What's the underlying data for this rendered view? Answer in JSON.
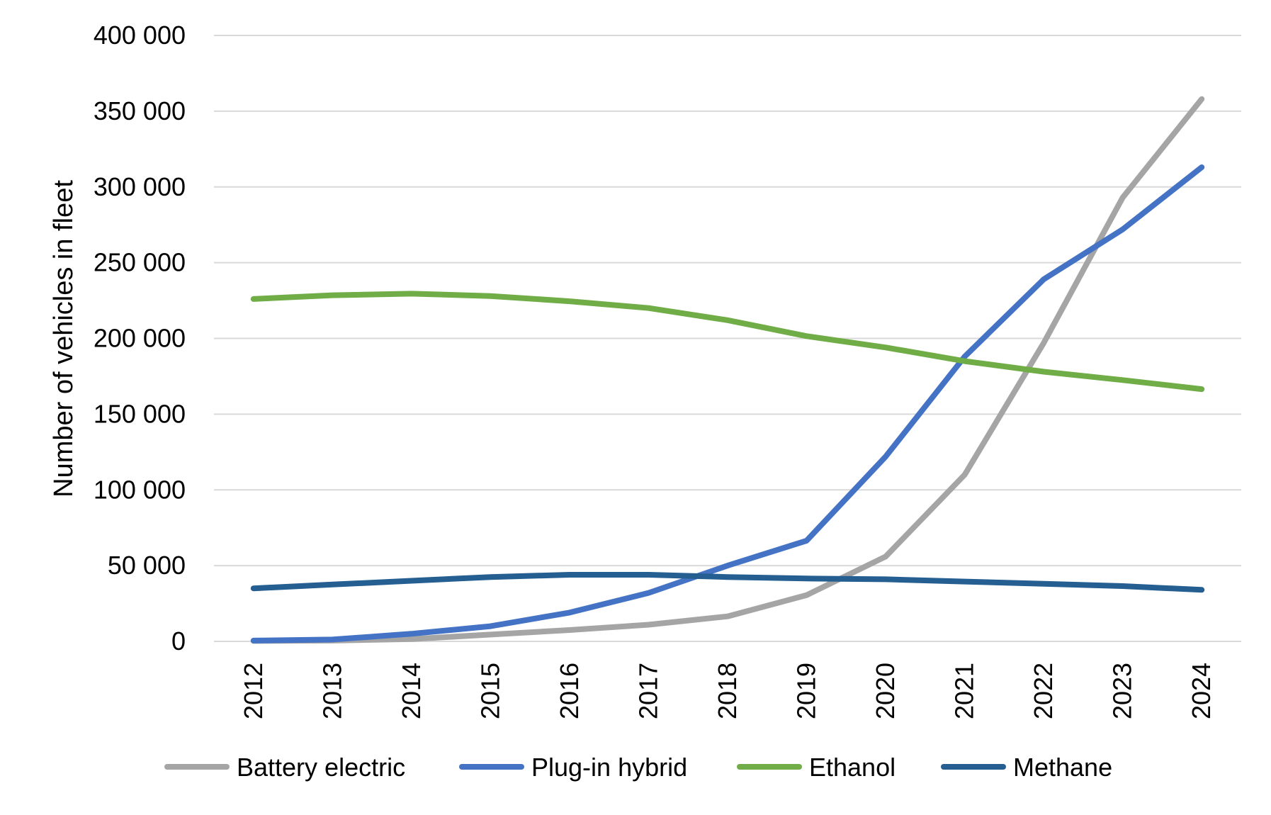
{
  "chart_data": {
    "type": "line",
    "title": "",
    "xlabel": "",
    "ylabel": "Number of vehicles in fleet",
    "categories": [
      "2012",
      "2013",
      "2014",
      "2015",
      "2016",
      "2017",
      "2018",
      "2019",
      "2020",
      "2021",
      "2022",
      "2023",
      "2024"
    ],
    "ylim": [
      0,
      400000
    ],
    "yticks": [
      {
        "value": 0,
        "label": "0"
      },
      {
        "value": 50000,
        "label": "50 000"
      },
      {
        "value": 100000,
        "label": "100 000"
      },
      {
        "value": 150000,
        "label": "150 000"
      },
      {
        "value": 200000,
        "label": "200 000"
      },
      {
        "value": 250000,
        "label": "250 000"
      },
      {
        "value": 300000,
        "label": "300 000"
      },
      {
        "value": 350000,
        "label": "350 000"
      },
      {
        "value": 400000,
        "label": "400 000"
      }
    ],
    "grid": true,
    "legend_position": "bottom",
    "series": [
      {
        "name": "Battery electric",
        "color": "#a5a5a5",
        "values": [
          300,
          500,
          1500,
          4500,
          7500,
          11000,
          16500,
          30500,
          56000,
          110000,
          197000,
          293000,
          358000
        ]
      },
      {
        "name": "Plug-in hybrid",
        "color": "#4472c4",
        "values": [
          500,
          1200,
          5000,
          10000,
          19000,
          32000,
          50000,
          66500,
          122000,
          188000,
          239000,
          272000,
          313000
        ]
      },
      {
        "name": "Ethanol",
        "color": "#70ad47",
        "values": [
          226000,
          228500,
          229500,
          228000,
          224500,
          220000,
          212000,
          201500,
          194000,
          185000,
          178000,
          172500,
          166500
        ]
      },
      {
        "name": "Methane",
        "color": "#255e91",
        "values": [
          35000,
          37500,
          40000,
          42500,
          44000,
          44000,
          42500,
          41500,
          41000,
          39500,
          38000,
          36500,
          34000
        ]
      }
    ]
  }
}
